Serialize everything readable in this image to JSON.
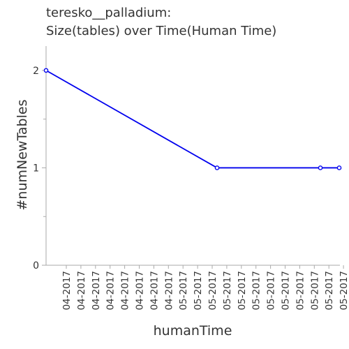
{
  "chart_data": {
    "type": "line",
    "title": [
      "teresko__palladium:",
      "Size(tables) over Time(Human Time)"
    ],
    "xlabel": "humanTime",
    "ylabel": "#numNewTables",
    "x_tick_labels": [
      "04-2017",
      "04-2017",
      "04-2017",
      "04-2017",
      "04-2017",
      "04-2017",
      "04-2017",
      "04-2017",
      "05-2017",
      "05-2017",
      "05-2017",
      "05-2017",
      "05-2017",
      "05-2017",
      "05-2017",
      "05-2017",
      "05-2017",
      "05-2017",
      "05-2017",
      "05-2017"
    ],
    "y_ticks": [
      0,
      1,
      2
    ],
    "ylim": [
      0,
      2.25
    ],
    "series": [
      {
        "color": "#0000ee",
        "points": [
          {
            "x": "04-2017",
            "y": 2
          },
          {
            "x": "05-2017",
            "y": 1
          },
          {
            "x": "05-2017",
            "y": 1
          },
          {
            "x": "05-2017",
            "y": 1
          }
        ]
      }
    ],
    "grid": false
  }
}
